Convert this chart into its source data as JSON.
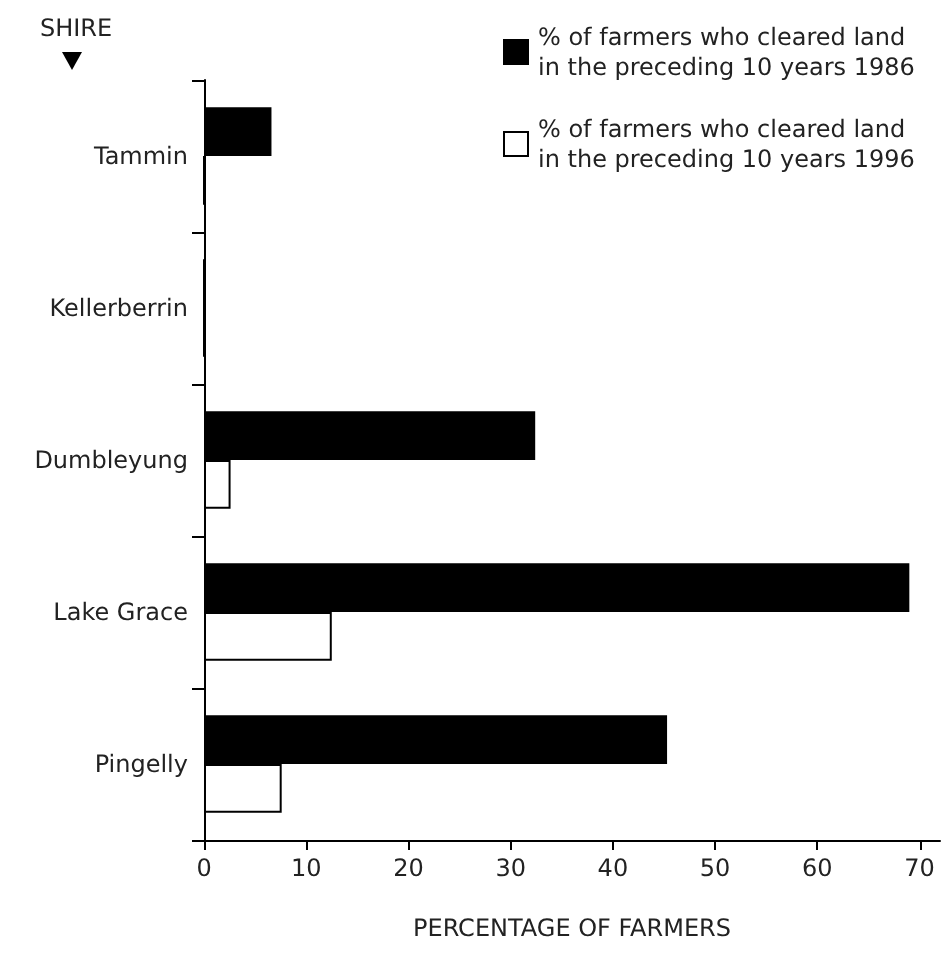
{
  "chart_data": {
    "type": "bar",
    "orientation": "horizontal",
    "xlabel": "PERCENTAGE OF FARMERS",
    "ylabel": "SHIRE",
    "categories": [
      "Tammin",
      "Kellerberrin",
      "Dumbleyung",
      "Lake Grace",
      "Pingelly"
    ],
    "series": [
      {
        "name": "% of farmers who cleared land in the preceding 10 years 1986",
        "color": "#000000",
        "values": [
          6.6,
          0,
          32.4,
          69,
          45.3
        ]
      },
      {
        "name": "% of farmers who cleared land in the preceding 10 years 1996",
        "color": "#ffffff",
        "values": [
          0,
          0,
          2.6,
          12.5,
          7.6
        ]
      }
    ],
    "xlim": [
      0,
      72
    ],
    "xticks": [
      0,
      10,
      20,
      30,
      40,
      50,
      60,
      70
    ],
    "grid": false,
    "legend": "top right"
  }
}
